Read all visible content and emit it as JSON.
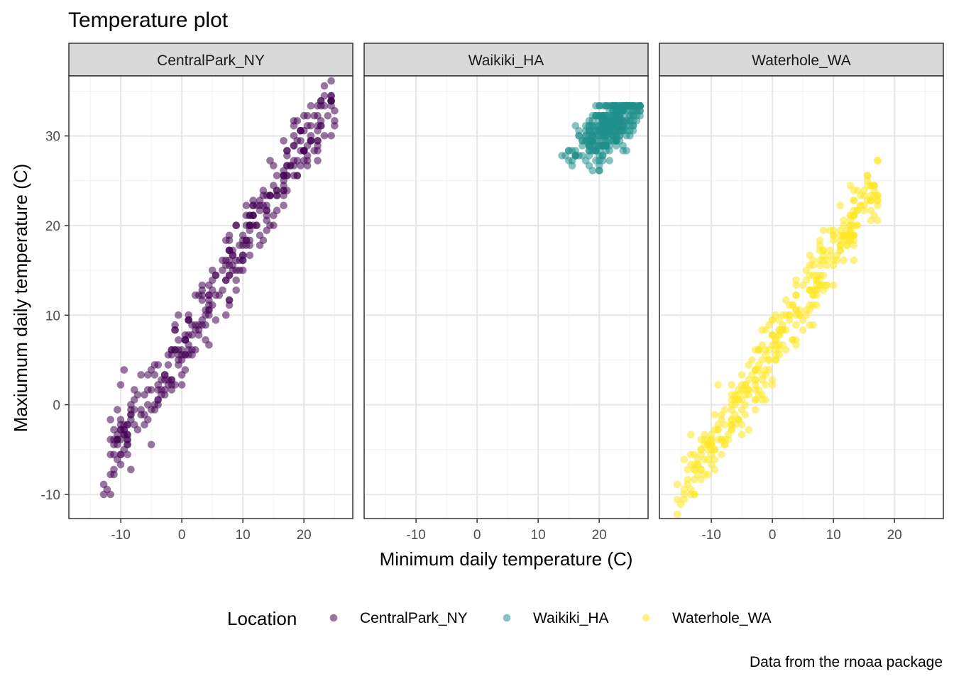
{
  "chart_data": {
    "type": "scatter",
    "title": "Temperature plot",
    "xlabel": "Minimum daily temperature (C)",
    "ylabel": "Maxiumum daily temperature (C)",
    "caption": "Data from the rnoaa package",
    "xlim": [
      -18.5,
      28.0
    ],
    "ylim": [
      -12.7,
      36.7
    ],
    "x_ticks": [
      -10,
      0,
      10,
      20
    ],
    "x_tick_labels": [
      "-10",
      "0",
      "10",
      "20"
    ],
    "y_ticks": [
      -10,
      0,
      10,
      20,
      30
    ],
    "y_tick_labels": [
      "-10",
      "0",
      "10",
      "20",
      "30"
    ],
    "grid": true,
    "legend": {
      "title": "Location",
      "position": "bottom"
    },
    "panels": [
      {
        "name": "CentralPark_NY",
        "color": "#440154",
        "generator": {
          "mode": "linear",
          "n": 365,
          "x_min": -12.7,
          "x_max": 25.0,
          "slope": 1.1,
          "intercept": 6.8,
          "noise": 2.1,
          "seed": 11
        }
      },
      {
        "name": "Waikiki_HA",
        "color": "#21908C",
        "generator": {
          "mode": "cluster",
          "n": 365,
          "x_min": 12.0,
          "x_max": 26.5,
          "y_min": 21.7,
          "y_max": 33.3,
          "seed": 23
        }
      },
      {
        "name": "Waterhole_WA",
        "color": "#FDE725",
        "generator": {
          "mode": "linear",
          "n": 365,
          "x_min": -16.0,
          "x_max": 17.5,
          "slope": 1.08,
          "intercept": 6.0,
          "noise": 1.8,
          "seed": 37
        }
      }
    ],
    "series_sample": {
      "CentralPark_NY": [
        [
          -12.7,
          -6.0
        ],
        [
          -11.6,
          -7.7
        ],
        [
          -10.0,
          2.8
        ],
        [
          -5.0,
          10.0
        ],
        [
          0,
          16.7
        ],
        [
          5.0,
          15.0
        ],
        [
          10.0,
          22.2
        ],
        [
          15.0,
          25.6
        ],
        [
          20.0,
          28.9
        ],
        [
          25.0,
          34.4
        ]
      ],
      "Waikiki_HA": [
        [
          12.2,
          26.7
        ],
        [
          13.3,
          32.2
        ],
        [
          17.8,
          21.7
        ],
        [
          18.3,
          32.8
        ],
        [
          20.0,
          27.8
        ],
        [
          22.2,
          31.1
        ],
        [
          25.0,
          33.3
        ],
        [
          26.1,
          32.2
        ]
      ],
      "Waterhole_WA": [
        [
          -16.0,
          -9.4
        ],
        [
          -15.0,
          -10.0
        ],
        [
          -12.2,
          -10.5
        ],
        [
          -10.0,
          -3.9
        ],
        [
          -5.0,
          2.2
        ],
        [
          0,
          5.6
        ],
        [
          5.0,
          17.8
        ],
        [
          10.0,
          21.7
        ],
        [
          13.3,
          26.4
        ],
        [
          17.5,
          25.2
        ]
      ]
    }
  }
}
